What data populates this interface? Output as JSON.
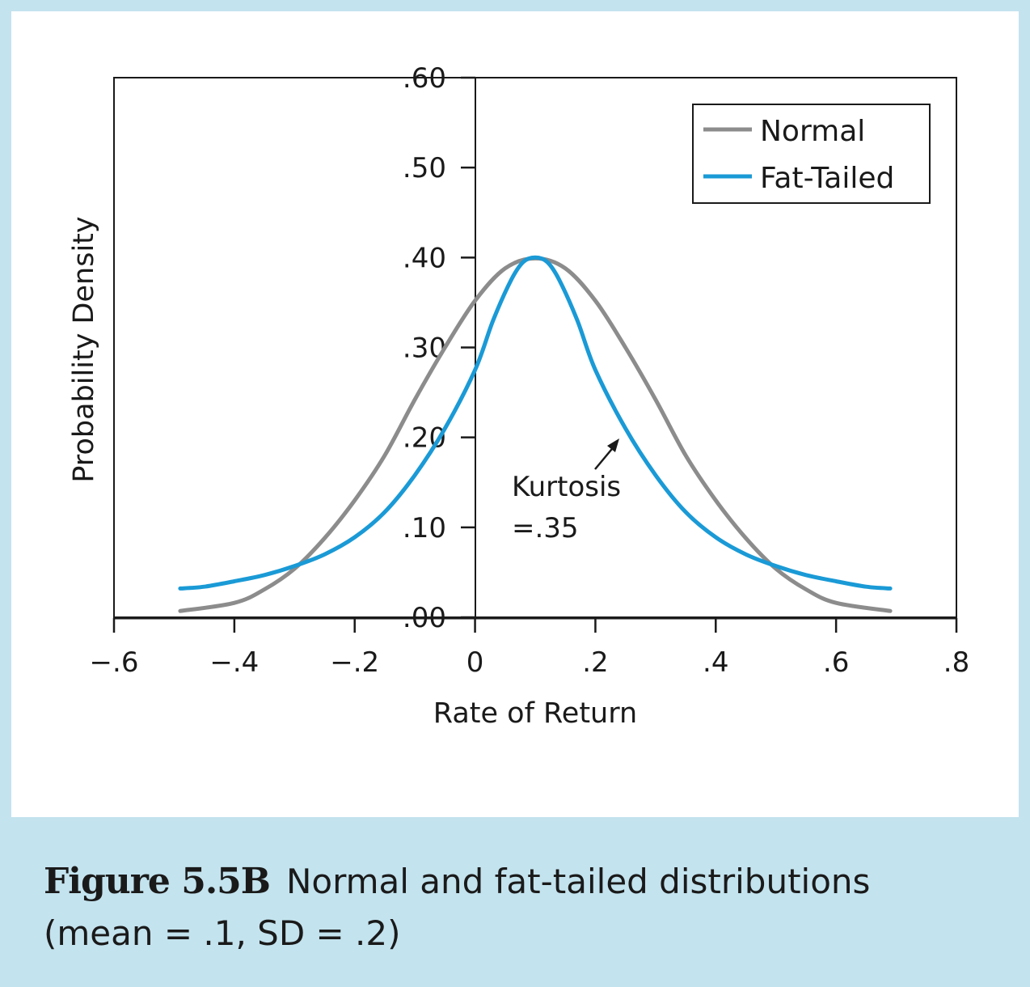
{
  "caption": {
    "label": "Figure 5.5B",
    "line1": "Normal and fat-tailed distributions",
    "line2": "(mean = .1, SD = .2)"
  },
  "chart_data": {
    "type": "line",
    "xlabel": "Rate of Return",
    "ylabel": "Probability Density",
    "xlim": [
      -0.6,
      0.8
    ],
    "ylim": [
      0,
      0.6
    ],
    "x_ticks": [
      "−.6",
      "−.4",
      "−.2",
      "0",
      ".2",
      ".4",
      ".6",
      ".8"
    ],
    "y_ticks": [
      ".00",
      ".10",
      ".20",
      ".30",
      ".40",
      ".50",
      ".60"
    ],
    "grid": false,
    "legend": {
      "placement": "top-right",
      "entries": [
        "Normal",
        "Fat-Tailed"
      ]
    },
    "series": [
      {
        "name": "Normal",
        "color": "#8c8c8c",
        "x": [
          -0.49,
          -0.4,
          -0.35,
          -0.3,
          -0.25,
          -0.2,
          -0.15,
          -0.1,
          -0.05,
          0,
          0.05,
          0.1,
          0.15,
          0.2,
          0.25,
          0.3,
          0.35,
          0.4,
          0.45,
          0.5,
          0.55,
          0.6,
          0.69
        ],
        "y": [
          0.007,
          0.016,
          0.031,
          0.054,
          0.088,
          0.13,
          0.18,
          0.242,
          0.3,
          0.352,
          0.388,
          0.399,
          0.388,
          0.352,
          0.3,
          0.242,
          0.18,
          0.13,
          0.088,
          0.054,
          0.031,
          0.016,
          0.007
        ]
      },
      {
        "name": "Fat-Tailed",
        "color": "#1a9ad6",
        "x": [
          -0.49,
          -0.45,
          -0.4,
          -0.35,
          -0.3,
          -0.25,
          -0.2,
          -0.15,
          -0.1,
          -0.05,
          0,
          0.03,
          0.06,
          0.08,
          0.1,
          0.12,
          0.14,
          0.17,
          0.2,
          0.25,
          0.3,
          0.35,
          0.4,
          0.45,
          0.5,
          0.55,
          0.6,
          0.65,
          0.69
        ],
        "y": [
          0.032,
          0.034,
          0.04,
          0.047,
          0.057,
          0.07,
          0.089,
          0.117,
          0.158,
          0.21,
          0.275,
          0.33,
          0.375,
          0.395,
          0.4,
          0.395,
          0.375,
          0.33,
          0.275,
          0.21,
          0.158,
          0.117,
          0.089,
          0.07,
          0.057,
          0.047,
          0.04,
          0.034,
          0.032
        ]
      }
    ],
    "annotation": {
      "line1": "Kurtosis",
      "line2": "=.35",
      "points_to": [
        0.24,
        0.2
      ]
    }
  }
}
